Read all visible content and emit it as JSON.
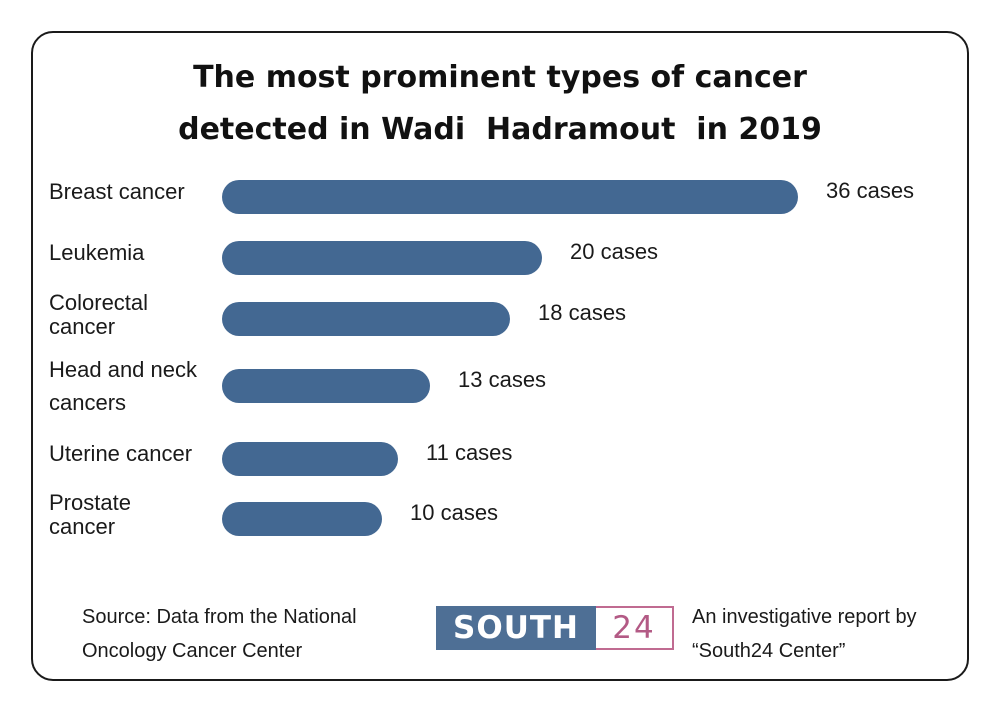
{
  "title_lines": [
    "The most prominent types of cancer",
    "detected in Wadi  Hadramout  in 2019"
  ],
  "chart_data": {
    "type": "bar",
    "orientation": "horizontal",
    "title": "The most prominent types of cancer detected in Wadi  Hadramout  in 2019",
    "categories": [
      [
        "Breast cancer"
      ],
      [
        "Leukemia"
      ],
      [
        "Colorectal",
        "cancer"
      ],
      [
        "Head and neck",
        "cancers"
      ],
      [
        "Uterine cancer"
      ],
      [
        "Prostate",
        "cancer"
      ]
    ],
    "values": [
      36,
      20,
      18,
      13,
      11,
      10
    ],
    "value_labels": [
      "36 cases",
      "20 cases",
      "18 cases",
      "13 cases",
      "11 cases",
      "10 cases"
    ],
    "bar_color": "#436892",
    "grid": false,
    "legend": "none"
  },
  "source": {
    "line1": "Source: Data from the National",
    "line2": "Oncology Cancer Center"
  },
  "logo": {
    "text_main": "SOUTH",
    "text_num": "24",
    "main_bg": "#4e6f95",
    "num_color": "#b35a85"
  },
  "credit": {
    "line1": "An investigative report by",
    "line2": "“South24 Center”"
  }
}
